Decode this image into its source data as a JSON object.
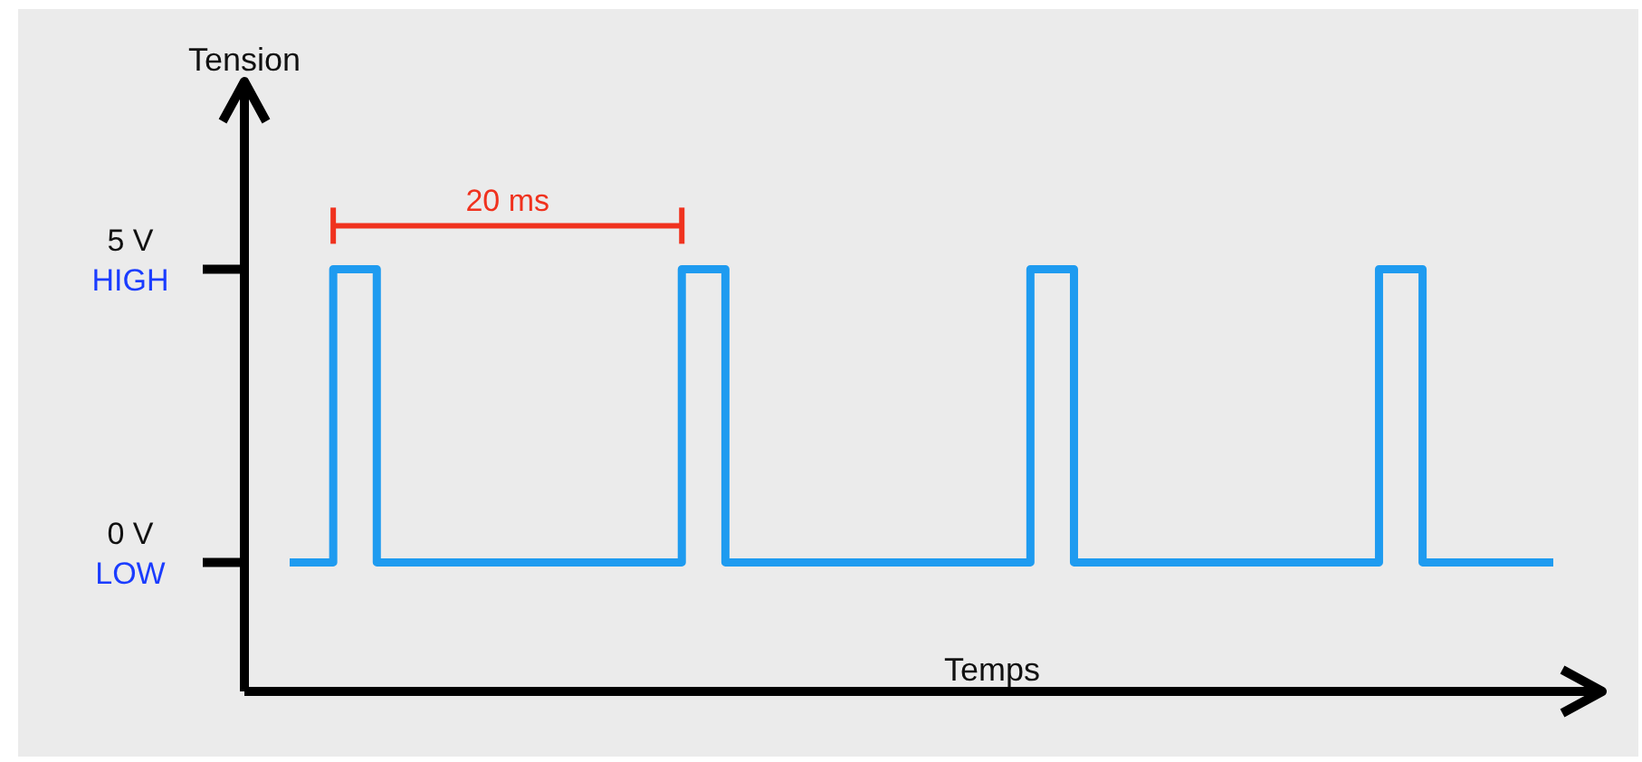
{
  "chart_data": {
    "type": "step",
    "xlabel": "Temps",
    "ylabel": "Tension",
    "categories": [
      null,
      null,
      null,
      null,
      null,
      null,
      null,
      null,
      null,
      null,
      null,
      null,
      null,
      null,
      null,
      null,
      null,
      null,
      null,
      null,
      null,
      null,
      null,
      null,
      null,
      null,
      null,
      null,
      null,
      null
    ],
    "series": [
      {
        "color": "#1e9bf0",
        "values": [
          0,
          5,
          0,
          0,
          0,
          0,
          0,
          0,
          0,
          5,
          0,
          0,
          0,
          0,
          0,
          0,
          0,
          5,
          0,
          0,
          0,
          0,
          0,
          0,
          0,
          5,
          0,
          0,
          0,
          0
        ]
      }
    ],
    "ylim": [
      -2.2,
      8.2
    ],
    "yticks": [
      {
        "value": 0,
        "label": "0 V\nLOW"
      },
      {
        "value": 5,
        "label": "5 V\nHIGH"
      }
    ],
    "tick_labels": "y",
    "grid": false,
    "marker": "none",
    "line_style": "solid",
    "annotations": [
      "20 ms"
    ]
  }
}
